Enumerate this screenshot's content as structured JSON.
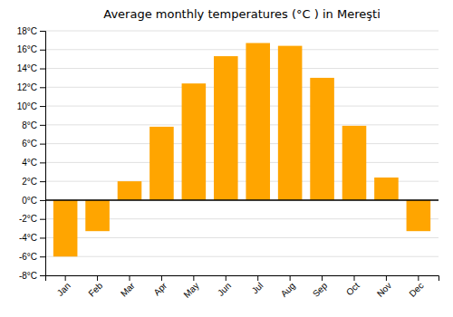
{
  "chart_data": {
    "type": "bar",
    "title": "Average monthly temperatures (°C ) in Mereşti",
    "categories": [
      "Jan",
      "Feb",
      "Mar",
      "Apr",
      "May",
      "Jun",
      "Jul",
      "Aug",
      "Sep",
      "Oct",
      "Nov",
      "Dec"
    ],
    "values": [
      -6.0,
      -3.3,
      2.0,
      7.8,
      12.4,
      15.3,
      16.7,
      16.4,
      13.0,
      7.9,
      2.4,
      -3.3
    ],
    "color": "#FFA500",
    "ylim": [
      -8,
      18
    ],
    "yticks": [
      {
        "value": -8,
        "label": "-8°C"
      },
      {
        "value": -6,
        "label": "-6°C"
      },
      {
        "value": -4,
        "label": "-4°C"
      },
      {
        "value": -2,
        "label": "-2°C"
      },
      {
        "value": 0,
        "label": "0°C"
      },
      {
        "value": 2,
        "label": "2°C"
      },
      {
        "value": 4,
        "label": "4°C"
      },
      {
        "value": 6,
        "label": "6°C"
      },
      {
        "value": 8,
        "label": "8°C"
      },
      {
        "value": 10,
        "label": "10°C"
      },
      {
        "value": 12,
        "label": "12°C"
      },
      {
        "value": 14,
        "label": "14°C"
      },
      {
        "value": 16,
        "label": "16°C"
      },
      {
        "value": 18,
        "label": "18°C"
      }
    ],
    "grid": true
  }
}
